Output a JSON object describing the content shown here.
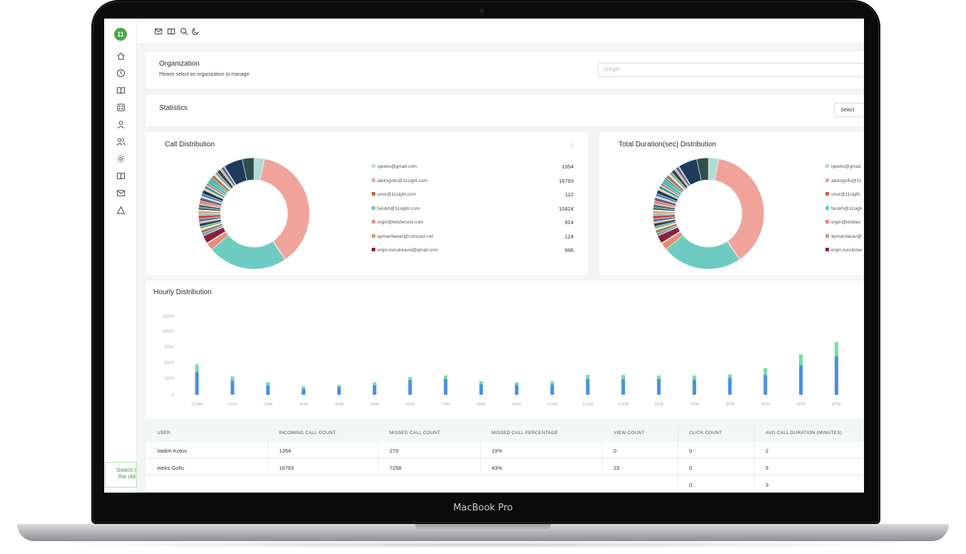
{
  "device": {
    "label": "MacBook Pro"
  },
  "app": {
    "logo_text": "11",
    "switch_text_1": "Switch to",
    "switch_text_2": "the old"
  },
  "sidebar": {
    "items": [
      {
        "icon": "home-icon"
      },
      {
        "icon": "clock-icon"
      },
      {
        "icon": "book-icon"
      },
      {
        "icon": "grid-icon"
      },
      {
        "icon": "user-icon"
      },
      {
        "icon": "users-icon"
      },
      {
        "icon": "gear-icon"
      },
      {
        "icon": "book-open-icon"
      },
      {
        "icon": "mail-icon"
      },
      {
        "icon": "alert-icon"
      }
    ]
  },
  "topbar": {
    "icons": [
      "mail-icon",
      "book-icon",
      "search-icon",
      "moon-icon"
    ]
  },
  "organization": {
    "title": "Organization",
    "subtitle": "Please select an organization to manage",
    "input_value": "11Sight"
  },
  "statistics": {
    "title": "Statistics",
    "select_label": "Select"
  },
  "call_distribution": {
    "title": "Call Distribution",
    "menu_icon": "kebab-icon",
    "legend": [
      {
        "label": "igeeko@gmail.com",
        "value": "1354",
        "color": "#b2dcd3"
      },
      {
        "label": "aleksgollu@11sight.com",
        "value": "16793",
        "color": "#efa39b"
      },
      {
        "label": "onur@11sight.com",
        "value": "112",
        "color": "#c9603f"
      },
      {
        "label": "farokh@11sight.com",
        "value": "10424",
        "color": "#6ecbc1"
      },
      {
        "label": "ergin@letsbecool.com",
        "value": "914",
        "color": "#e48d79"
      },
      {
        "label": "aymanfawaz@comcast.net",
        "value": "124",
        "color": "#c8a176"
      },
      {
        "label": "ergin.kucukiravul@gmail.com",
        "value": "996",
        "color": "#8b1e3f"
      }
    ]
  },
  "duration_distribution": {
    "title": "Total Duration(sec) Distribution",
    "legend": [
      {
        "label": "igeeko@gmail.",
        "color": "#b2dcd3"
      },
      {
        "label": "aleksgollu@11",
        "color": "#efa39b"
      },
      {
        "label": "onur@11sight.",
        "color": "#c9603f"
      },
      {
        "label": "farokh@11sigh",
        "color": "#6ecbc1"
      },
      {
        "label": "ergin@letsbec",
        "color": "#e48d79"
      },
      {
        "label": "aymanfawaz@",
        "color": "#c8a176"
      },
      {
        "label": "ergin.kucukirav",
        "color": "#8b1e3f"
      }
    ]
  },
  "chart_data": [
    {
      "type": "pie",
      "title": "Call Distribution",
      "categories": [
        "igeeko@gmail.com",
        "aleksgollu@11sight.com",
        "onur@11sight.com",
        "farokh@11sight.com",
        "ergin@letsbecool.com",
        "aymanfawaz@comcast.net",
        "ergin.kucukiravul@gmail.com"
      ],
      "values": [
        1354,
        16793,
        112,
        10424,
        914,
        124,
        996
      ]
    },
    {
      "type": "bar",
      "title": "Hourly Distribution",
      "categories": [
        "12AM",
        "1AM",
        "2AM",
        "3AM",
        "4AM",
        "5AM",
        "6AM",
        "7AM",
        "8AM",
        "9AM",
        "10AM",
        "11AM",
        "12PM",
        "1PM",
        "2PM",
        "3PM",
        "4PM",
        "5PM",
        "6PM"
      ],
      "yticks": [
        "15000",
        "10000",
        "8000",
        "6000",
        "3000",
        "0"
      ],
      "series": [
        {
          "values": [
            4300,
            2700,
            1800,
            1200,
            1500,
            1800,
            2800,
            3000,
            2000,
            1900,
            2000,
            3000,
            3000,
            3000,
            2900,
            3200,
            3800,
            5700,
            7400
          ],
          "color": "#4a90e2"
        },
        {
          "values": [
            1500,
            800,
            600,
            400,
            400,
            600,
            600,
            700,
            600,
            500,
            600,
            800,
            800,
            700,
            800,
            700,
            1300,
            2000,
            2700
          ],
          "color": "#6fe0a3"
        }
      ],
      "ylim": [
        0,
        15000
      ]
    }
  ],
  "hourly": {
    "title": "Hourly Distribution"
  },
  "table": {
    "headers": [
      "USER",
      "INCOMING CALL COUNT",
      "MISSED CALL COUNT",
      "MISSED CALL PERCENTAGE",
      "VIEW COUNT",
      "CLICK COUNT",
      "AVG CALL DURATION (MINUTES)"
    ],
    "rows": [
      [
        "Vadim Kotov",
        "1354",
        "270",
        "19%",
        "0",
        "0",
        "2"
      ],
      [
        "Aleks Gollu",
        "16793",
        "7258",
        "43%",
        "23",
        "0",
        "5"
      ],
      [
        "",
        "",
        "",
        "",
        "",
        "0",
        "3"
      ]
    ]
  }
}
